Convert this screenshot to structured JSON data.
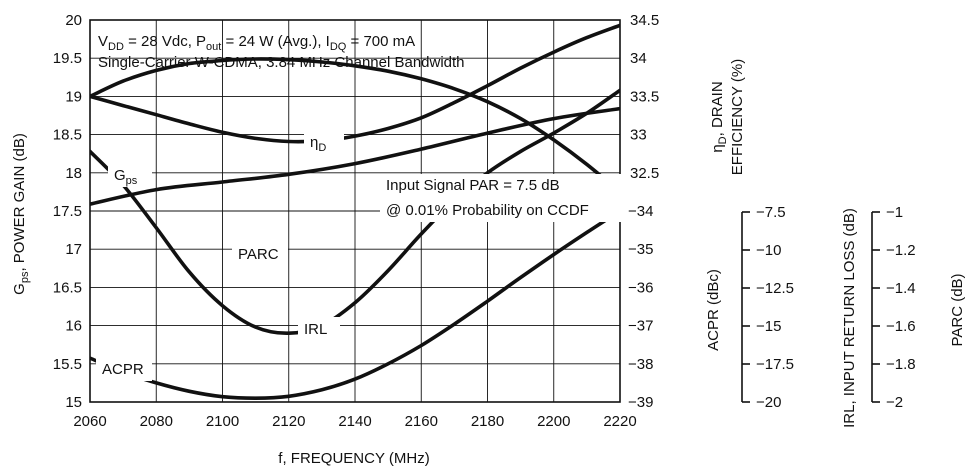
{
  "chart_data": {
    "type": "line",
    "xlabel": "f, FREQUENCY (MHz)",
    "x_ticks": [
      2060,
      2080,
      2100,
      2120,
      2140,
      2160,
      2180,
      2200,
      2220
    ],
    "xlim": [
      2060,
      2220
    ],
    "grid": true,
    "left_axis": {
      "label_main": "G",
      "label_sub": "ps",
      "label_rest": ", POWER GAIN (dB)",
      "ylim": [
        15,
        20
      ],
      "ticks": [
        "15",
        "15.5",
        "16",
        "16.5",
        "17",
        "17.5",
        "18",
        "18.5",
        "19",
        "19.5",
        "20"
      ]
    },
    "right_axis_upper": {
      "label_line1_sym": "η",
      "label_line1_sub": "D",
      "label_line1_rest": ", DRAIN",
      "label_line2": "EFFICIENCY (%)",
      "ylim": [
        32.5,
        34.5
      ],
      "ticks": [
        "32.5",
        "33",
        "33.5",
        "34",
        "34.5"
      ]
    },
    "right_axis_lower": {
      "label": "ACPR (dBc)",
      "ylim": [
        -39,
        -34
      ],
      "ticks": [
        "-39",
        "-38",
        "-37",
        "-36",
        "-35",
        "-34"
      ]
    },
    "irl_scale": {
      "label": "IRL, INPUT RETURN LOSS (dB)",
      "ylim": [
        -20,
        -7.5
      ],
      "ticks": [
        "-20",
        "-17.5",
        "-15",
        "-12.5",
        "-10",
        "-7.5"
      ]
    },
    "parc_scale": {
      "label": "PARC (dB)",
      "ylim": [
        -2,
        -1
      ],
      "ticks": [
        "-2",
        "-1.8",
        "-1.6",
        "-1.4",
        "-1.2",
        "-1"
      ]
    },
    "annotations": {
      "cond1": "V",
      "cond1_sub1": "DD",
      "cond1_b": " = 28 Vdc, P",
      "cond1_sub2": "out",
      "cond1_c": " = 24 W (Avg.), I",
      "cond1_sub3": "DQ",
      "cond1_d": " = 700 mA",
      "cond2": "Single-Carrier W-CDMA, 3.84 MHz Channel Bandwidth",
      "par1": "Input Signal PAR = 7.5 dB",
      "par2": "@ 0.01% Probability on CCDF"
    },
    "series": [
      {
        "name": "ηD",
        "axis": "right_axis_upper",
        "x": [
          2060,
          2070,
          2080,
          2090,
          2100,
          2110,
          2120,
          2130,
          2140,
          2150,
          2160,
          2170,
          2180,
          2190,
          2200,
          2210,
          2220
        ],
        "values": [
          33.5,
          33.38,
          33.26,
          33.14,
          33.03,
          32.95,
          32.91,
          32.92,
          32.98,
          33.08,
          33.22,
          33.42,
          33.64,
          33.87,
          34.08,
          34.27,
          34.43
        ]
      },
      {
        "name": "Gps",
        "axis": "left_axis",
        "x": [
          2060,
          2080,
          2100,
          2120,
          2140,
          2160,
          2180,
          2200,
          2220
        ],
        "values": [
          17.59,
          17.78,
          17.88,
          17.98,
          18.12,
          18.31,
          18.52,
          18.71,
          18.84
        ]
      },
      {
        "name": "PARC",
        "axis": "parc_scale",
        "x": [
          2060,
          2070,
          2080,
          2090,
          2100,
          2110,
          2120,
          2130,
          2140,
          2150,
          2160,
          2170,
          2180,
          2190,
          2200,
          2210,
          2220
        ],
        "values": [
          -1.2,
          -1.16,
          -1.132,
          -1.114,
          -1.106,
          -1.102,
          -1.104,
          -1.11,
          -1.12,
          -1.134,
          -1.154,
          -1.18,
          -1.214,
          -1.258,
          -1.314,
          -1.378,
          -1.45
        ]
      },
      {
        "name": "IRL",
        "axis": "irl_scale",
        "x": [
          2060,
          2070,
          2080,
          2090,
          2100,
          2110,
          2120,
          2130,
          2140,
          2150,
          2160,
          2170,
          2180,
          2190,
          2200,
          2210,
          2220
        ],
        "values": [
          -11.8,
          -12.9,
          -14.3,
          -15.75,
          -16.85,
          -17.55,
          -17.75,
          -17.5,
          -16.75,
          -15.7,
          -14.5,
          -13.4,
          -12.5,
          -11.8,
          -11.2,
          -10.55,
          -9.8
        ]
      },
      {
        "name": "ACPR",
        "axis": "right_axis_lower",
        "x": [
          2060,
          2070,
          2080,
          2090,
          2100,
          2110,
          2120,
          2130,
          2140,
          2150,
          2160,
          2170,
          2180,
          2190,
          2200,
          2210,
          2220
        ],
        "values": [
          -37.85,
          -38.22,
          -38.5,
          -38.72,
          -38.86,
          -38.9,
          -38.85,
          -38.68,
          -38.4,
          -38.0,
          -37.52,
          -36.96,
          -36.36,
          -35.74,
          -35.14,
          -34.56,
          -34.0
        ]
      }
    ]
  }
}
